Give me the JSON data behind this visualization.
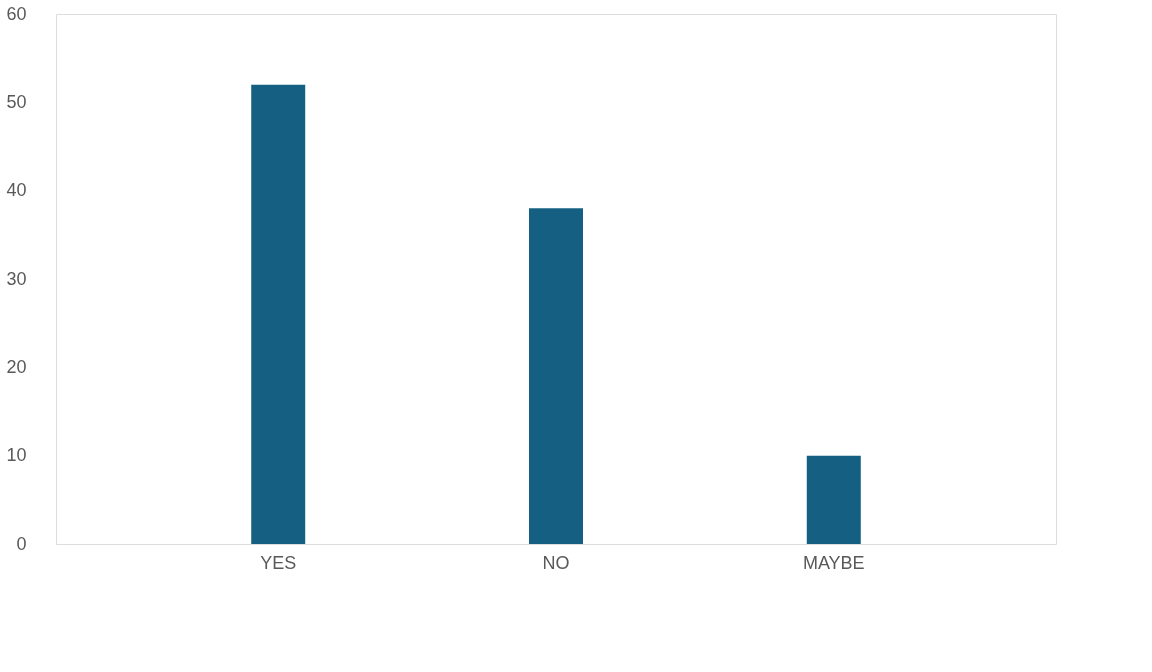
{
  "chart_data": {
    "type": "bar",
    "categories": [
      "YES",
      "NO",
      "MAYBE"
    ],
    "values": [
      52,
      38,
      10
    ],
    "color": "#156082",
    "ylim": [
      0,
      60
    ],
    "yticks": [
      0,
      10,
      20,
      30,
      40,
      50,
      60
    ],
    "grid": false
  }
}
